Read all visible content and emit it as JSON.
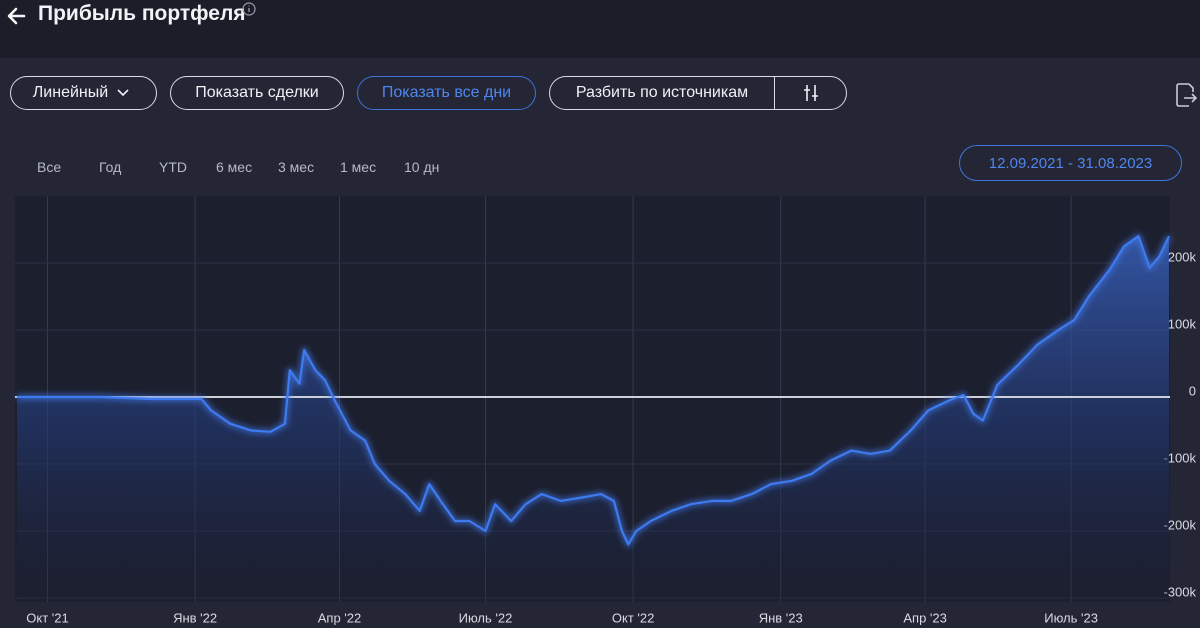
{
  "header": {
    "title": "Прибыль портфеля"
  },
  "toolbar": {
    "chart_mode": "Линейный",
    "show_trades": "Показать сделки",
    "show_all_days": "Показать все дни",
    "split_by_sources": "Разбить по источникам"
  },
  "ranges": [
    "Все",
    "Год",
    "YTD",
    "6 мес",
    "3 мес",
    "1 мес",
    "10 дн"
  ],
  "date_range": "12.09.2021 - 31.08.2023",
  "chart_data": {
    "type": "area",
    "color": "#3f7bf0",
    "x": [
      "2021-09-12",
      "2021-11-03",
      "2021-12-05",
      "2022-01-05",
      "2022-01-11",
      "2022-01-23",
      "2022-02-05",
      "2022-02-17",
      "2022-02-26",
      "2022-03-01",
      "2022-03-07",
      "2022-03-10",
      "2022-03-17",
      "2022-03-23",
      "2022-03-29",
      "2022-04-08",
      "2022-04-17",
      "2022-04-23",
      "2022-05-02",
      "2022-05-12",
      "2022-05-21",
      "2022-05-27",
      "2022-06-03",
      "2022-06-12",
      "2022-06-21",
      "2022-07-01",
      "2022-07-07",
      "2022-07-17",
      "2022-07-26",
      "2022-08-05",
      "2022-08-17",
      "2022-08-30",
      "2022-09-11",
      "2022-09-19",
      "2022-09-24",
      "2022-09-28",
      "2022-10-03",
      "2022-10-12",
      "2022-10-25",
      "2022-11-06",
      "2022-11-19",
      "2022-12-01",
      "2022-12-14",
      "2022-12-26",
      "2023-01-08",
      "2023-01-20",
      "2023-02-01",
      "2023-02-14",
      "2023-02-26",
      "2023-03-10",
      "2023-03-23",
      "2023-04-03",
      "2023-04-16",
      "2023-04-25",
      "2023-05-01",
      "2023-05-07",
      "2023-05-16",
      "2023-05-29",
      "2023-06-10",
      "2023-06-23",
      "2023-07-03",
      "2023-07-12",
      "2023-07-25",
      "2023-08-03",
      "2023-08-12",
      "2023-08-19",
      "2023-08-25",
      "2023-08-31"
    ],
    "values": [
      0,
      0,
      -3000,
      -3000,
      -20000,
      -40000,
      -50000,
      -52000,
      -40000,
      40000,
      20000,
      70000,
      40000,
      25000,
      -5000,
      -50000,
      -65000,
      -100000,
      -125000,
      -145000,
      -170000,
      -130000,
      -155000,
      -185000,
      -185000,
      -200000,
      -160000,
      -185000,
      -160000,
      -145000,
      -155000,
      -150000,
      -145000,
      -155000,
      -200000,
      -220000,
      -200000,
      -185000,
      -170000,
      -160000,
      -155000,
      -155000,
      -145000,
      -130000,
      -125000,
      -115000,
      -95000,
      -80000,
      -85000,
      -80000,
      -50000,
      -20000,
      -5000,
      3000,
      -25000,
      -35000,
      18000,
      48000,
      78000,
      100000,
      115000,
      150000,
      190000,
      225000,
      240000,
      193000,
      210000,
      240000
    ],
    "xlim": [
      "2021-09-12",
      "2023-08-31"
    ],
    "xticks": [
      {
        "value": "2021-10-01",
        "label": "Окт '21"
      },
      {
        "value": "2022-01-01",
        "label": "Янв '22"
      },
      {
        "value": "2022-04-01",
        "label": "Апр '22"
      },
      {
        "value": "2022-07-01",
        "label": "Июль '22"
      },
      {
        "value": "2022-10-01",
        "label": "Окт '22"
      },
      {
        "value": "2023-01-01",
        "label": "Янв '23"
      },
      {
        "value": "2023-04-01",
        "label": "Апр '23"
      },
      {
        "value": "2023-07-01",
        "label": "Июль '23"
      }
    ],
    "ylim": [
      -300000,
      300000
    ],
    "yticks": [
      {
        "value": 200000,
        "label": "200k"
      },
      {
        "value": 100000,
        "label": "100k"
      },
      {
        "value": 0,
        "label": "0"
      },
      {
        "value": -100000,
        "label": "-100k"
      },
      {
        "value": -200000,
        "label": "-200k"
      },
      {
        "value": -300000,
        "label": "-300k"
      }
    ],
    "grid": true
  }
}
